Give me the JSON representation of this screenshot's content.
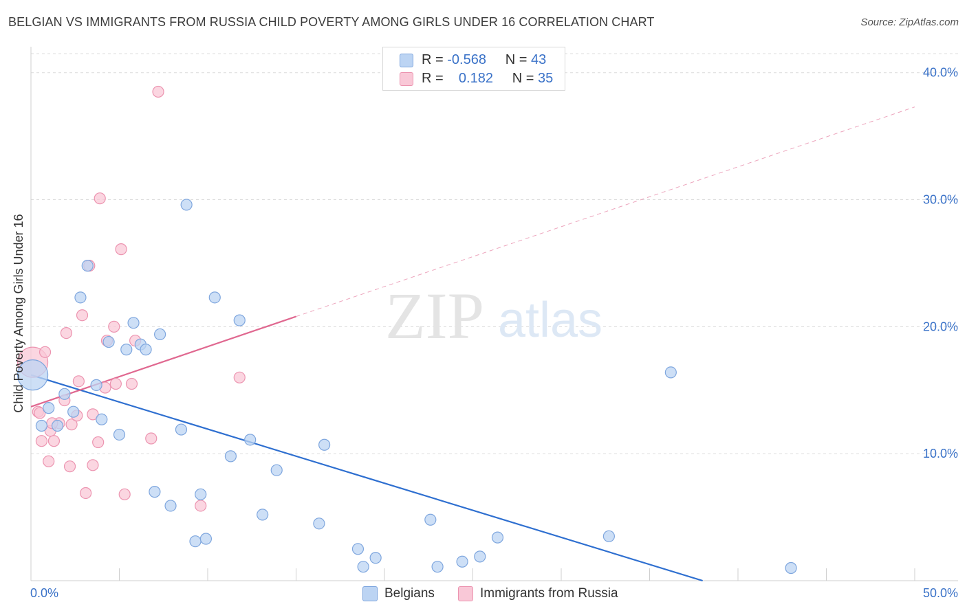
{
  "title": "BELGIAN VS IMMIGRANTS FROM RUSSIA CHILD POVERTY AMONG GIRLS UNDER 16 CORRELATION CHART",
  "source": "Source: ZipAtlas.com",
  "watermark": {
    "zip": "ZIP",
    "atlas": "atlas"
  },
  "colors": {
    "belgian_fill": "#bcd4f3",
    "belgian_stroke": "#7ea6de",
    "belgian_line": "#2e6fd0",
    "russia_fill": "#f9c8d7",
    "russia_stroke": "#ec94b0",
    "russia_line": "#e06890",
    "axis_label": "#3a72c8",
    "grid": "#dcdcdc"
  },
  "legend": {
    "rows": [
      {
        "r_label": "R =",
        "r_value": "-0.568",
        "n_label": "N =",
        "n_value": "43"
      },
      {
        "r_label": "R =",
        "r_value": "0.182",
        "n_label": "N =",
        "n_value": "35"
      }
    ]
  },
  "bottom_legend": {
    "belgians": "Belgians",
    "russia": "Immigrants from Russia"
  },
  "chart_data": {
    "type": "scatter",
    "title": "BELGIAN VS IMMIGRANTS FROM RUSSIA CHILD POVERTY AMONG GIRLS UNDER 16 CORRELATION CHART",
    "xlabel": "",
    "ylabel": "Child Poverty Among Girls Under 16",
    "xlim": [
      0,
      50
    ],
    "ylim": [
      0,
      41.5
    ],
    "x_tick_labels": [
      "0.0%",
      "50.0%"
    ],
    "y_ticks": [
      10,
      20,
      30,
      40
    ],
    "y_tick_labels": [
      "10.0%",
      "20.0%",
      "30.0%",
      "40.0%"
    ],
    "grid": true,
    "series": [
      {
        "name": "Belgians",
        "r": -0.568,
        "n": 43,
        "trend": {
          "x": [
            0,
            38
          ],
          "y": [
            16.2,
            0
          ],
          "dashed_to": null
        },
        "points": [
          {
            "x": 0.1,
            "y": 16.2,
            "big": true
          },
          {
            "x": 0.6,
            "y": 12.2
          },
          {
            "x": 1.0,
            "y": 13.6
          },
          {
            "x": 1.5,
            "y": 12.2
          },
          {
            "x": 1.9,
            "y": 14.7
          },
          {
            "x": 2.4,
            "y": 13.3
          },
          {
            "x": 2.8,
            "y": 22.3
          },
          {
            "x": 3.2,
            "y": 24.8
          },
          {
            "x": 3.7,
            "y": 15.4
          },
          {
            "x": 4.0,
            "y": 12.7
          },
          {
            "x": 4.4,
            "y": 18.8
          },
          {
            "x": 5.0,
            "y": 11.5
          },
          {
            "x": 5.4,
            "y": 18.2
          },
          {
            "x": 5.8,
            "y": 20.3
          },
          {
            "x": 6.2,
            "y": 18.6
          },
          {
            "x": 6.5,
            "y": 18.2
          },
          {
            "x": 7.0,
            "y": 7.0
          },
          {
            "x": 7.3,
            "y": 19.4
          },
          {
            "x": 7.9,
            "y": 5.9
          },
          {
            "x": 8.5,
            "y": 11.9
          },
          {
            "x": 8.8,
            "y": 29.6
          },
          {
            "x": 9.3,
            "y": 3.1
          },
          {
            "x": 9.6,
            "y": 6.8
          },
          {
            "x": 9.9,
            "y": 3.3
          },
          {
            "x": 10.4,
            "y": 22.3
          },
          {
            "x": 11.3,
            "y": 9.8
          },
          {
            "x": 11.8,
            "y": 20.5
          },
          {
            "x": 12.4,
            "y": 11.1
          },
          {
            "x": 13.1,
            "y": 5.2
          },
          {
            "x": 13.9,
            "y": 8.7
          },
          {
            "x": 16.3,
            "y": 4.5
          },
          {
            "x": 16.6,
            "y": 10.7
          },
          {
            "x": 18.5,
            "y": 2.5
          },
          {
            "x": 18.8,
            "y": 1.1
          },
          {
            "x": 19.5,
            "y": 1.8
          },
          {
            "x": 22.6,
            "y": 4.8
          },
          {
            "x": 23.0,
            "y": 1.1
          },
          {
            "x": 24.4,
            "y": 1.5
          },
          {
            "x": 25.4,
            "y": 1.9
          },
          {
            "x": 26.4,
            "y": 3.4
          },
          {
            "x": 32.7,
            "y": 3.5
          },
          {
            "x": 36.2,
            "y": 16.4
          },
          {
            "x": 43.0,
            "y": 1.0
          }
        ]
      },
      {
        "name": "Immigrants from Russia",
        "r": 0.182,
        "n": 35,
        "trend": {
          "x": [
            0,
            15
          ],
          "y": [
            13.7,
            20.8
          ],
          "dashed_to": {
            "x": 50,
            "y": 37.3
          }
        },
        "points": [
          {
            "x": 0.1,
            "y": 17.2,
            "big": true
          },
          {
            "x": 0.4,
            "y": 13.3
          },
          {
            "x": 0.6,
            "y": 11.0
          },
          {
            "x": 0.8,
            "y": 18.0
          },
          {
            "x": 1.0,
            "y": 9.4
          },
          {
            "x": 1.1,
            "y": 11.8
          },
          {
            "x": 1.3,
            "y": 11.0
          },
          {
            "x": 1.6,
            "y": 12.4
          },
          {
            "x": 1.9,
            "y": 14.2
          },
          {
            "x": 2.0,
            "y": 19.5
          },
          {
            "x": 2.2,
            "y": 9.0
          },
          {
            "x": 2.3,
            "y": 12.3
          },
          {
            "x": 2.6,
            "y": 13.0
          },
          {
            "x": 2.7,
            "y": 15.7
          },
          {
            "x": 2.9,
            "y": 20.9
          },
          {
            "x": 3.1,
            "y": 6.9
          },
          {
            "x": 3.3,
            "y": 24.8
          },
          {
            "x": 3.5,
            "y": 13.1
          },
          {
            "x": 3.5,
            "y": 9.1
          },
          {
            "x": 3.8,
            "y": 10.9
          },
          {
            "x": 3.9,
            "y": 30.1
          },
          {
            "x": 4.2,
            "y": 15.2
          },
          {
            "x": 4.3,
            "y": 18.9
          },
          {
            "x": 4.7,
            "y": 20.0
          },
          {
            "x": 4.8,
            "y": 15.5
          },
          {
            "x": 5.1,
            "y": 26.1
          },
          {
            "x": 5.3,
            "y": 6.8
          },
          {
            "x": 5.7,
            "y": 15.5
          },
          {
            "x": 5.9,
            "y": 18.9
          },
          {
            "x": 6.8,
            "y": 11.2
          },
          {
            "x": 7.2,
            "y": 38.5
          },
          {
            "x": 9.6,
            "y": 5.9
          },
          {
            "x": 11.8,
            "y": 16.0
          },
          {
            "x": 1.2,
            "y": 12.4
          },
          {
            "x": 0.5,
            "y": 13.2
          }
        ]
      }
    ]
  }
}
